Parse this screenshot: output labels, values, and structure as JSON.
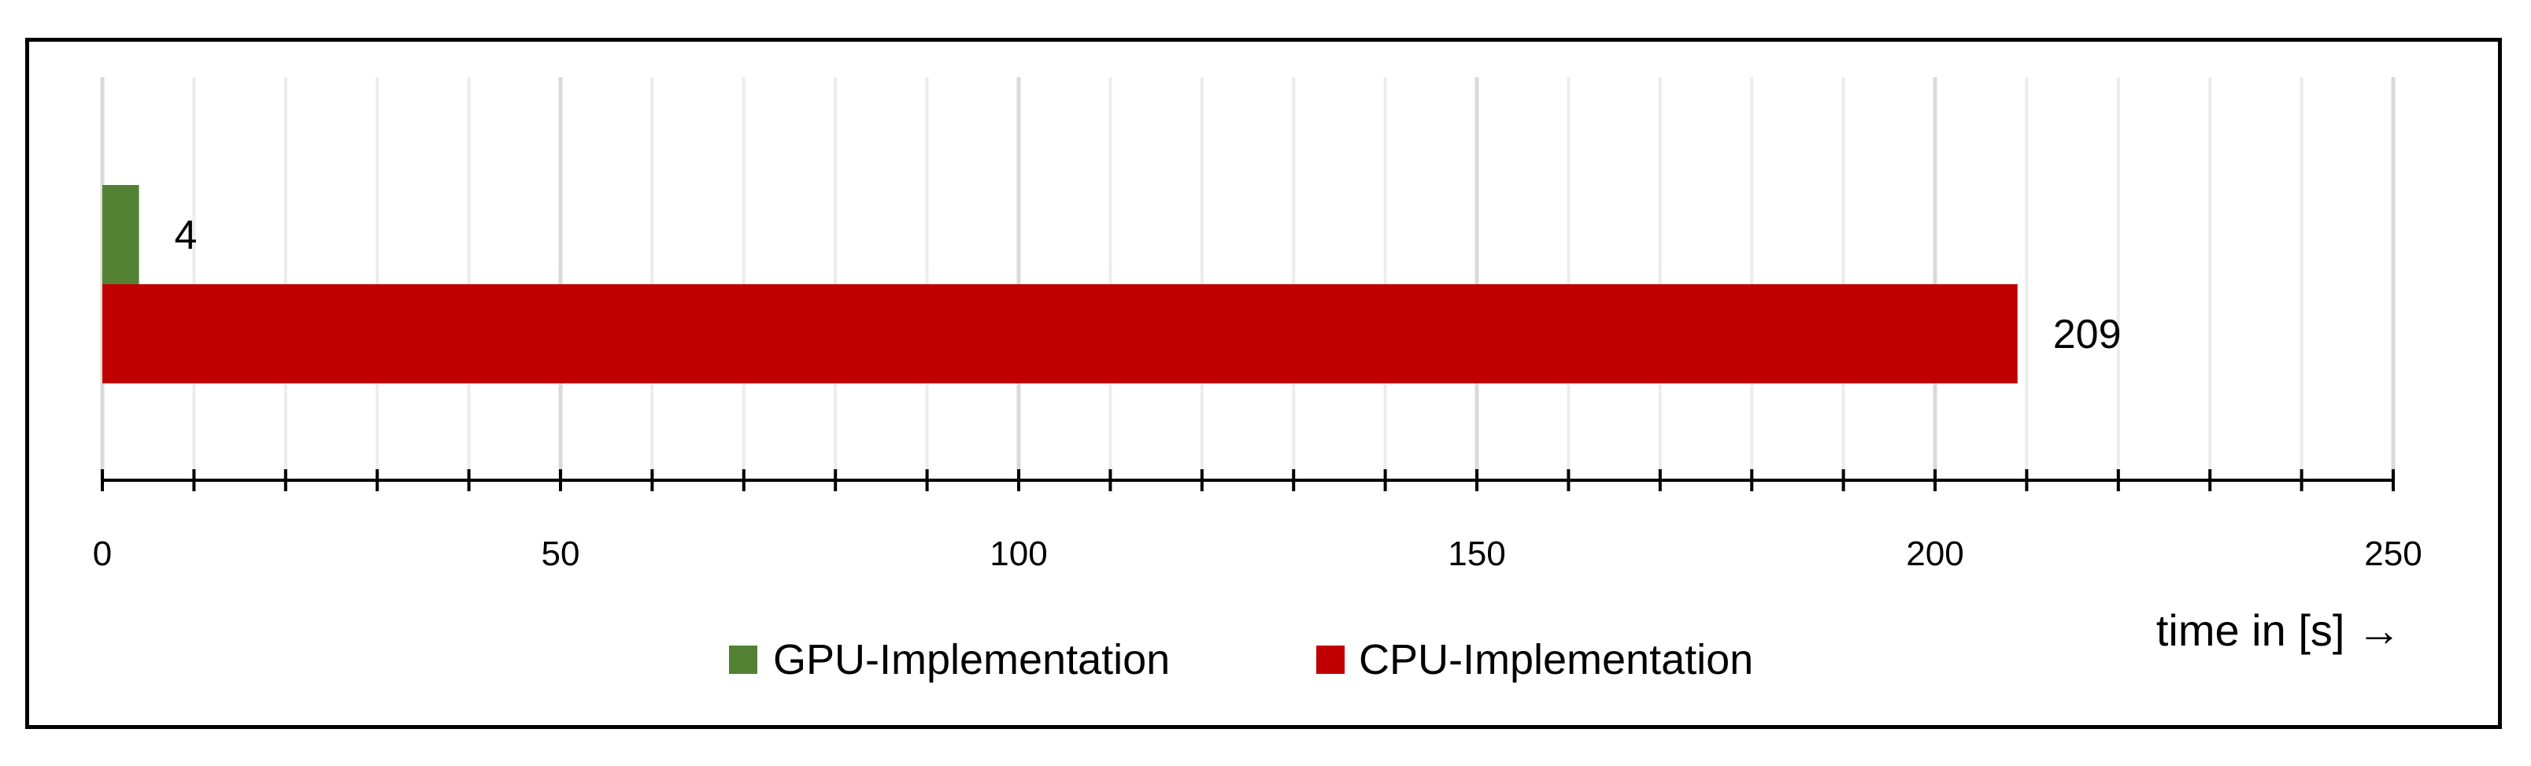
{
  "chart_data": {
    "type": "bar",
    "orientation": "horizontal",
    "series": [
      {
        "name": "GPU-Implementation",
        "value": 4,
        "color": "#548235"
      },
      {
        "name": "CPU-Implementation",
        "value": 209,
        "color": "#C00000"
      }
    ],
    "xlim": [
      0,
      250
    ],
    "x_major_ticks": [
      0,
      50,
      100,
      150,
      200,
      250
    ],
    "x_tick_labels": [
      "0",
      "50",
      "100",
      "150",
      "200",
      "250"
    ],
    "x_minor_step": 10,
    "xlabel": "time in [s] →",
    "grid": true,
    "legend_position": "bottom"
  }
}
